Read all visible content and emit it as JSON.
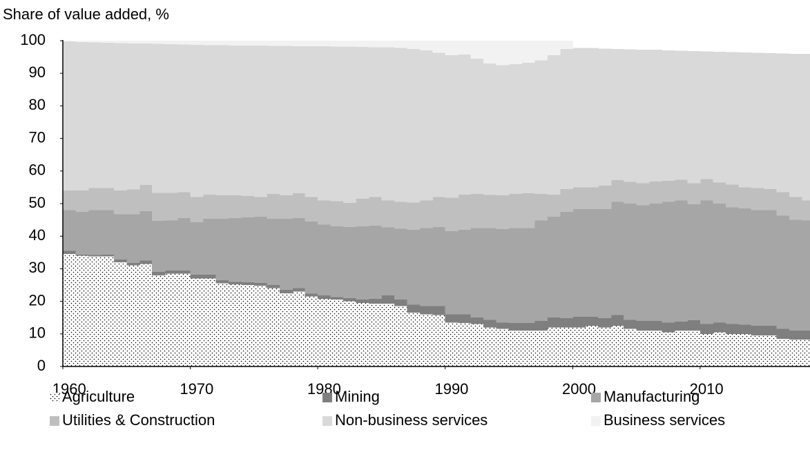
{
  "chart_data": {
    "type": "stacked-step-area",
    "title": "Share of value added, %",
    "x": [
      1960,
      1961,
      1962,
      1963,
      1964,
      1965,
      1966,
      1967,
      1968,
      1969,
      1970,
      1971,
      1972,
      1973,
      1974,
      1975,
      1976,
      1977,
      1978,
      1979,
      1980,
      1981,
      1982,
      1983,
      1984,
      1985,
      1986,
      1987,
      1988,
      1989,
      1990,
      1991,
      1992,
      1993,
      1994,
      1995,
      1996,
      1997,
      1998,
      1999,
      2000,
      2001,
      2002,
      2003,
      2004,
      2005,
      2006,
      2007,
      2008,
      2009,
      2010,
      2011,
      2012,
      2013,
      2014,
      2015,
      2016,
      2017,
      2018
    ],
    "xlim": [
      1959.5,
      2018.5
    ],
    "xticks": [
      1960,
      1970,
      1980,
      1990,
      2000,
      2010
    ],
    "ylim": [
      0,
      100
    ],
    "yticks": [
      0,
      10,
      20,
      30,
      40,
      50,
      60,
      70,
      80,
      90,
      100
    ],
    "grid": false,
    "legend": "bottom",
    "series": [
      {
        "name": "Agriculture",
        "color": "#ffffff",
        "pattern": "dots",
        "values": [
          34.5,
          34,
          33.8,
          33.8,
          32,
          31,
          31.5,
          28,
          28.5,
          28.5,
          27,
          27,
          25.5,
          25.2,
          25,
          24.8,
          24,
          22.5,
          23,
          21.5,
          20.8,
          20.5,
          20,
          19.5,
          19.3,
          19.3,
          18.5,
          16.5,
          16,
          15.8,
          13.5,
          13.3,
          13,
          12,
          11.5,
          11,
          11,
          11,
          12,
          12,
          12,
          12.5,
          12,
          12.5,
          11.5,
          11,
          11,
          10.5,
          11,
          11,
          10,
          10.5,
          10,
          10,
          9.5,
          9.5,
          8.5,
          8.3,
          8.3
        ]
      },
      {
        "name": "Mining",
        "color": "#7f7f7f",
        "values": [
          1.0,
          0.3,
          0.4,
          0.5,
          0.8,
          0.8,
          1.0,
          1.0,
          1.0,
          1.0,
          1.2,
          1.2,
          1.0,
          0.8,
          0.8,
          0.8,
          1.0,
          1.0,
          1.0,
          0.8,
          1.0,
          0.8,
          1.0,
          1.0,
          1.5,
          2.5,
          2.0,
          2.5,
          2.5,
          2.7,
          2.5,
          2.7,
          2.0,
          2.3,
          2.0,
          2.3,
          2.3,
          3.0,
          3.0,
          2.8,
          3.3,
          2.8,
          2.8,
          3.3,
          2.8,
          3.0,
          3.0,
          3.0,
          2.8,
          3.2,
          3.0,
          3.0,
          3.0,
          2.8,
          3.0,
          3.0,
          3.0,
          2.7,
          2.7
        ]
      },
      {
        "name": "Manufacturing",
        "color": "#a6a6a6",
        "values": [
          12.5,
          13.2,
          13.8,
          13.7,
          13.9,
          14.9,
          15.2,
          15.7,
          15.3,
          16.0,
          16.1,
          17.1,
          18.8,
          19.5,
          20.0,
          20.4,
          20.3,
          21.8,
          21.5,
          22.2,
          21.7,
          21.7,
          21.8,
          22.5,
          22.4,
          20.9,
          21.8,
          23.0,
          24.0,
          24.3,
          25.5,
          26.0,
          27.5,
          28.2,
          28.7,
          29.2,
          29.2,
          30.8,
          31.0,
          32.7,
          33.0,
          33.0,
          33.5,
          34.7,
          35.7,
          35.5,
          36.0,
          37.0,
          37.2,
          35.6,
          38.0,
          36.5,
          35.8,
          35.7,
          35.5,
          35.5,
          34.8,
          34.0,
          33.8
        ]
      },
      {
        "name": "Utilities & Construction",
        "color": "#bfbfbf",
        "values": [
          6.0,
          6.5,
          6.8,
          6.8,
          7.3,
          7.6,
          8.0,
          8.6,
          8.5,
          8.0,
          7.7,
          7.5,
          7.2,
          7.0,
          6.5,
          6.0,
          7.7,
          7.2,
          7.7,
          7.5,
          7.5,
          7.7,
          7.4,
          8.5,
          8.8,
          8.3,
          8.2,
          8.3,
          8.5,
          9.2,
          10.3,
          10.8,
          10.5,
          10.2,
          10.3,
          10.5,
          10.7,
          8.2,
          6.8,
          7.0,
          6.7,
          6.7,
          7.2,
          6.7,
          6.7,
          6.8,
          6.8,
          6.5,
          6.3,
          6.5,
          6.5,
          6.5,
          7.0,
          6.5,
          6.8,
          6.5,
          7.2,
          7.0,
          6.2
        ]
      },
      {
        "name": "Non-business services",
        "color": "#d9d9d9",
        "values": [
          45.8,
          45.6,
          44.7,
          44.6,
          45.3,
          44.9,
          43.4,
          45.7,
          45.6,
          45.3,
          46.7,
          45.8,
          46.1,
          46.0,
          46.2,
          46.5,
          45.4,
          45.9,
          45.1,
          46.3,
          47.3,
          47.5,
          48.0,
          46.6,
          46.0,
          47.0,
          47.3,
          47.2,
          46.0,
          44.3,
          43.7,
          43.0,
          41.5,
          40.3,
          40.0,
          39.8,
          40.0,
          41.0,
          42.7,
          43.0,
          42.8,
          42.8,
          42.1,
          40.3,
          40.6,
          40.9,
          40.4,
          40.0,
          39.6,
          40.5,
          39.2,
          40.1,
          40.7,
          41.4,
          41.5,
          41.7,
          42.6,
          44.0,
          45.0
        ]
      },
      {
        "name": "Business services",
        "color": "#f2f2f2",
        "values": [
          0.2,
          0.4,
          0.5,
          0.6,
          0.7,
          0.8,
          0.9,
          1.0,
          1.1,
          1.2,
          1.3,
          1.4,
          1.4,
          1.5,
          1.5,
          1.5,
          1.6,
          1.6,
          1.7,
          1.7,
          1.7,
          1.8,
          1.8,
          1.9,
          2.0,
          2.0,
          2.2,
          2.5,
          3.0,
          3.7,
          4.5,
          4.2,
          5.5,
          7.0,
          7.5,
          7.2,
          6.8,
          6.0,
          4.5,
          2.5,
          0,
          0,
          0,
          0,
          0,
          0,
          0,
          0,
          0,
          0,
          0,
          0,
          0,
          0,
          0,
          0,
          0,
          0,
          0
        ]
      }
    ]
  }
}
